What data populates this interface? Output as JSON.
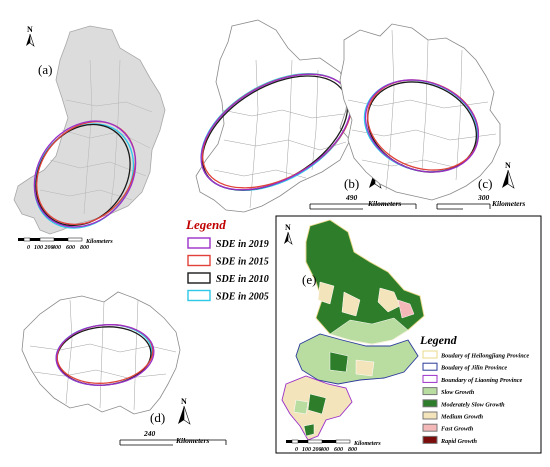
{
  "panels": {
    "a": {
      "label": "(a)",
      "scale_ticks": [
        "0",
        "100 200",
        "400",
        "600",
        "800"
      ],
      "scale_unit": "Kilometers"
    },
    "b": {
      "label": "(b)",
      "scale_value": "490",
      "scale_unit": "Kilometers"
    },
    "c": {
      "label": "(c)",
      "scale_value": "300",
      "scale_unit": "Kilometers"
    },
    "d": {
      "label": "(d)",
      "scale_value": "240",
      "scale_unit": "Kilometers"
    },
    "e": {
      "label": "(e)",
      "scale_ticks": [
        "0",
        "100 200",
        "400",
        "600",
        "800"
      ],
      "scale_unit": "Kilometers"
    }
  },
  "north_label": "N",
  "sde_legend": {
    "title": "Legend",
    "items": [
      {
        "label": "SDE in 2019",
        "color": "#9b30c8"
      },
      {
        "label": "SDE in 2015",
        "color": "#e0423a"
      },
      {
        "label": "SDE in 2010",
        "color": "#1a1a1a"
      },
      {
        "label": "SDE in 2005",
        "color": "#2ec8e8"
      }
    ]
  },
  "growth_legend": {
    "title": "Legend",
    "items": [
      {
        "label": "Boudary of Heilongjiang Province",
        "swatch": "#ffffff",
        "border": "#e8d88a"
      },
      {
        "label": "Boudary of Jilin Province",
        "swatch": "#ffffff",
        "border": "#2a3a9a"
      },
      {
        "label": "Boundary of Liaoning Province",
        "swatch": "#ffffff",
        "border": "#9b30c8"
      },
      {
        "label": "Slow Growth",
        "swatch": "#b9dca0",
        "border": "#777777"
      },
      {
        "label": "Moderately Slow Growth",
        "swatch": "#2e7d2a",
        "border": "#777777"
      },
      {
        "label": "Medium Growth",
        "swatch": "#f4e4bc",
        "border": "#777777"
      },
      {
        "label": "Fast Growth",
        "swatch": "#f4b8b8",
        "border": "#777777"
      },
      {
        "label": "Rapid Growth",
        "swatch": "#7a0c0c",
        "border": "#777777"
      }
    ]
  }
}
